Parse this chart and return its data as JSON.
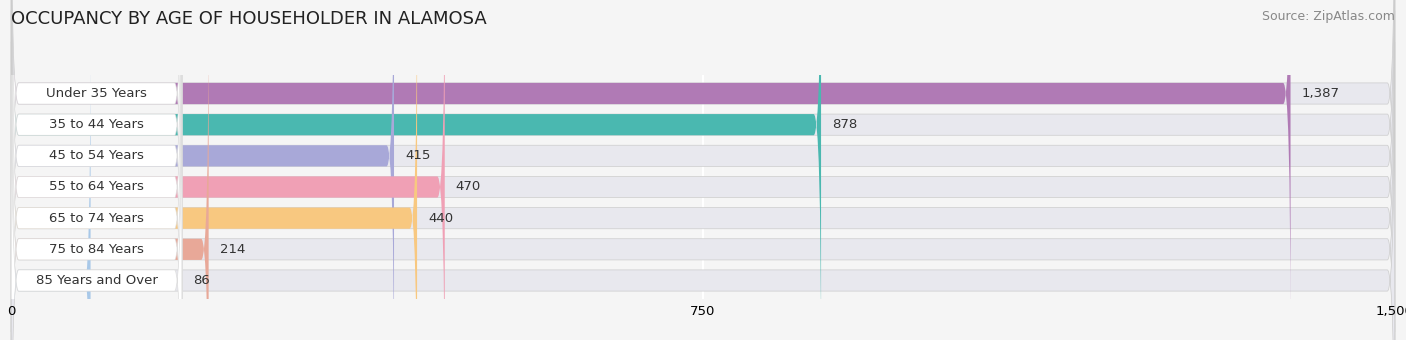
{
  "title": "OCCUPANCY BY AGE OF HOUSEHOLDER IN ALAMOSA",
  "source": "Source: ZipAtlas.com",
  "categories": [
    "Under 35 Years",
    "35 to 44 Years",
    "45 to 54 Years",
    "55 to 64 Years",
    "65 to 74 Years",
    "75 to 84 Years",
    "85 Years and Over"
  ],
  "values": [
    1387,
    878,
    415,
    470,
    440,
    214,
    86
  ],
  "bar_colors": [
    "#b07ab5",
    "#4ab8b0",
    "#a8a8d8",
    "#f0a0b5",
    "#f8c880",
    "#e8a898",
    "#a8c8e8"
  ],
  "xlim": [
    0,
    1500
  ],
  "xticks": [
    0,
    750,
    1500
  ],
  "background_color": "#f5f5f5",
  "bar_background_color": "#e8e8ee",
  "label_pill_color": "#ffffff",
  "title_fontsize": 13,
  "source_fontsize": 9,
  "label_fontsize": 9.5,
  "value_fontsize": 9.5
}
